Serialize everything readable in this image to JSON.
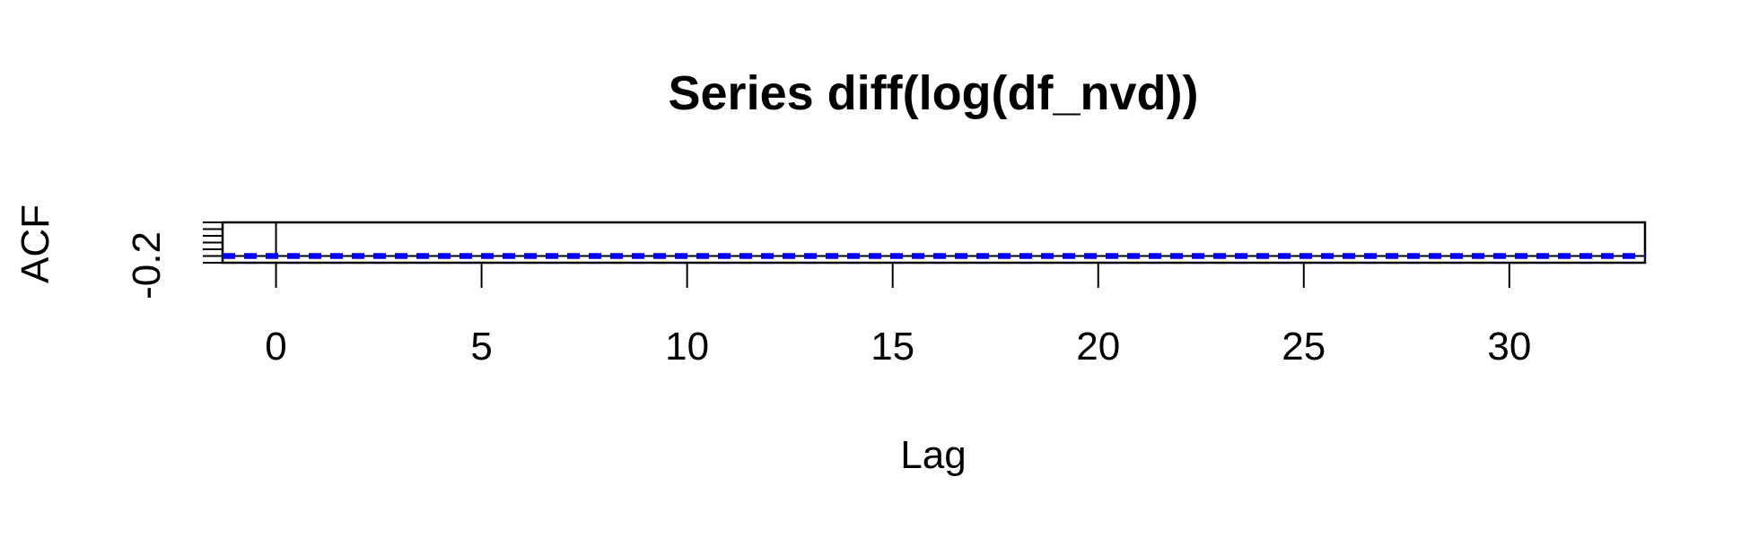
{
  "chart_data": {
    "type": "bar",
    "title": "Series  diff(log(df_nvd))",
    "xlabel": "Lag",
    "ylabel": "ACF",
    "y_tick_label": "-0.2",
    "x_ticks": [
      0,
      5,
      10,
      15,
      20,
      25,
      30
    ],
    "xlim": [
      -1.3,
      33.3
    ],
    "ylim": [
      -0.2,
      1.0
    ],
    "lags": [
      0,
      1,
      2,
      3,
      4,
      5,
      6,
      7,
      8,
      9,
      10,
      11,
      12,
      13,
      14,
      15,
      16,
      17,
      18,
      19,
      20,
      21,
      22,
      23,
      24,
      25,
      26,
      27,
      28,
      29,
      30,
      31,
      32,
      33
    ],
    "acf": [
      1.0,
      -0.03,
      0.01,
      -0.01,
      0.0,
      0.02,
      -0.01,
      0.0,
      -0.02,
      0.01,
      0.0,
      -0.01,
      -0.03,
      0.01,
      0.0,
      0.01,
      0.02,
      -0.01,
      0.0,
      0.01,
      -0.01,
      0.0,
      0.01,
      0.08,
      -0.01,
      0.0,
      0.01,
      -0.01,
      0.0,
      0.01,
      0.0,
      -0.02,
      0.01,
      0.0
    ],
    "ci_bound": 0.04,
    "ci_color": "#0000ff"
  }
}
